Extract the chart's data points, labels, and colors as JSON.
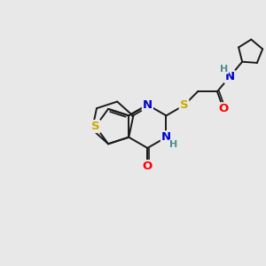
{
  "background_color": "#e8e8e8",
  "atom_colors": {
    "C": "#000000",
    "N": "#0000cd",
    "O": "#ff0000",
    "S": "#ccaa00",
    "H": "#4a9090"
  },
  "bond_color": "#1a1a1a",
  "bond_width": 1.4,
  "font_size_atom": 9.5,
  "figsize": [
    3.0,
    3.0
  ],
  "dpi": 100
}
